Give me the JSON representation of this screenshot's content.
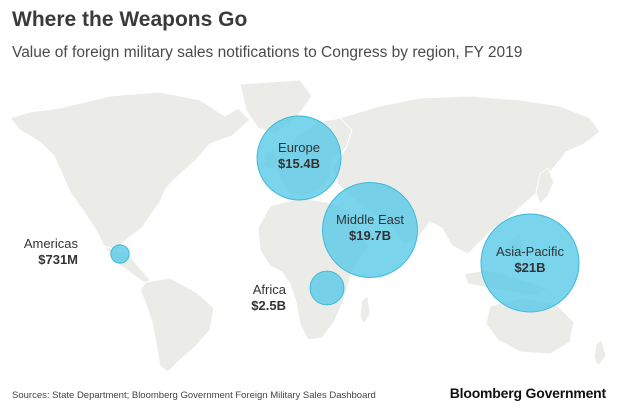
{
  "title": "Where the Weapons Go",
  "subtitle": "Value of foreign military sales notifications to Congress by region, FY 2019",
  "colors": {
    "land": "#ebebe8",
    "border": "#ffffff",
    "bubble": "#5bcbe8",
    "bubble_stroke": "#3fb8dc",
    "label": "#333333"
  },
  "regions": [
    {
      "name": "Americas",
      "value": "$731M",
      "value_billions": 0.731
    },
    {
      "name": "Europe",
      "value": "$15.4B",
      "value_billions": 15.4
    },
    {
      "name": "Africa",
      "value": "$2.5B",
      "value_billions": 2.5
    },
    {
      "name": "Middle East",
      "value": "$19.7B",
      "value_billions": 19.7
    },
    {
      "name": "Asia-Pacific",
      "value": "$21B",
      "value_billions": 21
    }
  ],
  "footer": {
    "source": "Sources: State Department; Bloomberg Government Foreign Military Sales Dashboard",
    "brand": "Bloomberg Government"
  }
}
